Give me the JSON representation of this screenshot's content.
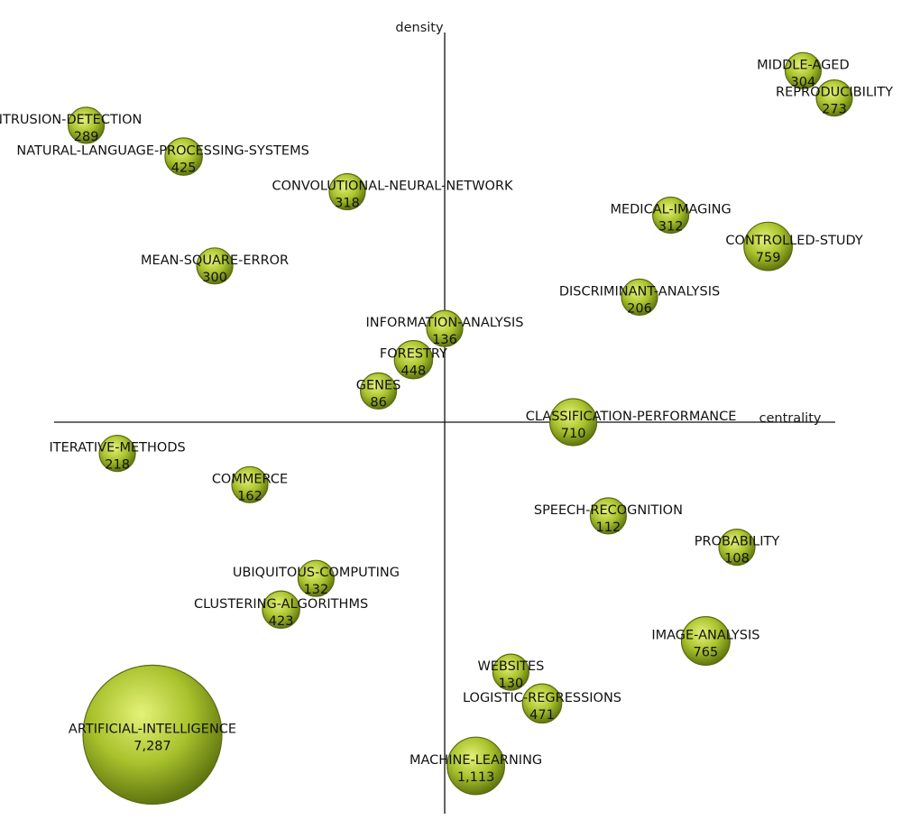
{
  "chart_data": {
    "type": "scatter",
    "title": "",
    "xlabel": "centrality",
    "ylabel": "density",
    "colors": {
      "bubble_light": "#e4f27a",
      "bubble_mid": "#a9c22c",
      "bubble_dark": "#5f7510",
      "axis": "#111111"
    },
    "themes": [
      {
        "name": "MIDDLE-AGED",
        "value": "304",
        "x": 0.92,
        "y": 0.9
      },
      {
        "name": "REPRODUCIBILITY",
        "value": "273",
        "x": 1.0,
        "y": 0.83
      },
      {
        "name": "INTRUSION-DETECTION",
        "value": "289",
        "x": -0.92,
        "y": 0.76
      },
      {
        "name": "NATURAL-LANGUAGE-PROCESSING-SYSTEMS",
        "value": "425",
        "x": -0.67,
        "y": 0.68
      },
      {
        "name": "CONVOLUTIONAL-NEURAL-NETWORK",
        "value": "318",
        "x": -0.25,
        "y": 0.59
      },
      {
        "name": "MEDICAL-IMAGING",
        "value": "312",
        "x": 0.58,
        "y": 0.53
      },
      {
        "name": "CONTROLLED-STUDY",
        "value": "759",
        "x": 0.83,
        "y": 0.45
      },
      {
        "name": "MEAN-SQUARE-ERROR",
        "value": "300",
        "x": -0.59,
        "y": 0.4
      },
      {
        "name": "DISCRIMINANT-ANALYSIS",
        "value": "206",
        "x": 0.5,
        "y": 0.32
      },
      {
        "name": "INFORMATION-ANALYSIS",
        "value": "136",
        "x": 0.0,
        "y": 0.24
      },
      {
        "name": "FORESTRY",
        "value": "448",
        "x": -0.08,
        "y": 0.16
      },
      {
        "name": "GENES",
        "value": "86",
        "x": -0.17,
        "y": 0.08
      },
      {
        "name": "CLASSIFICATION-PERFORMANCE",
        "value": "710",
        "x": 0.33,
        "y": 0.0
      },
      {
        "name": "ITERATIVE-METHODS",
        "value": "218",
        "x": -0.84,
        "y": -0.08
      },
      {
        "name": "COMMERCE",
        "value": "162",
        "x": -0.5,
        "y": -0.16
      },
      {
        "name": "SPEECH-RECOGNITION",
        "value": "112",
        "x": 0.42,
        "y": -0.24
      },
      {
        "name": "PROBABILITY",
        "value": "108",
        "x": 0.75,
        "y": -0.32
      },
      {
        "name": "UBIQUITOUS-COMPUTING",
        "value": "132",
        "x": -0.33,
        "y": -0.4
      },
      {
        "name": "CLUSTERING-ALGORITHMS",
        "value": "423",
        "x": -0.42,
        "y": -0.48
      },
      {
        "name": "IMAGE-ANALYSIS",
        "value": "765",
        "x": 0.67,
        "y": -0.56
      },
      {
        "name": "WEBSITES",
        "value": "130",
        "x": 0.17,
        "y": -0.64
      },
      {
        "name": "LOGISTIC-REGRESSIONS",
        "value": "471",
        "x": 0.25,
        "y": -0.72
      },
      {
        "name": "ARTIFICIAL-INTELLIGENCE",
        "value": "7,287",
        "x": -0.75,
        "y": -0.8
      },
      {
        "name": "MACHINE-LEARNING",
        "value": "1,113",
        "x": 0.08,
        "y": -0.88
      }
    ]
  }
}
